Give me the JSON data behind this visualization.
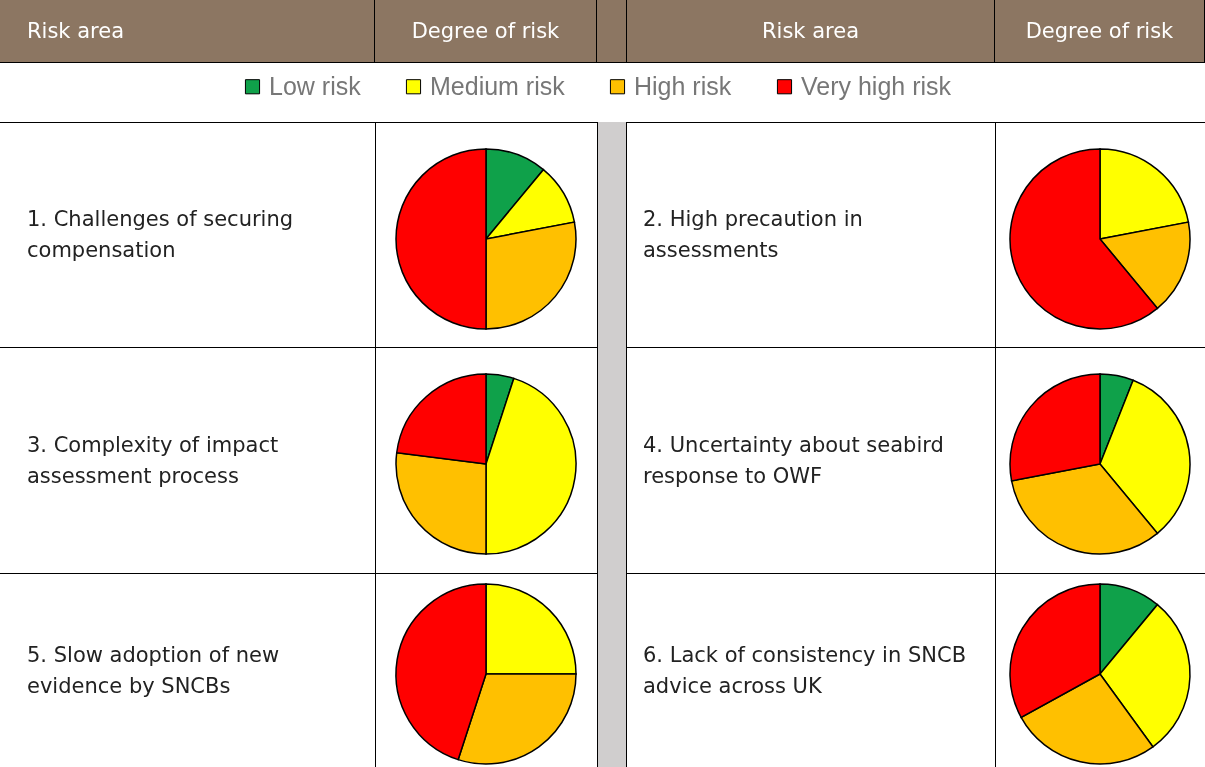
{
  "chart_data": [
    {
      "type": "pie",
      "title": "1. Challenges of securing compensation",
      "annotations": [
        "Risk area",
        "Degree of risk"
      ],
      "legend": "top",
      "categories": [
        "Low risk",
        "Medium risk",
        "High risk",
        "Very high risk"
      ],
      "values": [
        11,
        11,
        28,
        50
      ],
      "colors": [
        "#0fa14a",
        "#ffff00",
        "#ffc000",
        "#ff0000"
      ]
    },
    {
      "type": "pie",
      "title": "2. High precaution in assessments",
      "annotations": [
        "Risk area",
        "Degree of risk"
      ],
      "categories": [
        null,
        null,
        null
      ],
      "values": [
        22,
        17,
        61
      ],
      "colors": [
        "#ffff00",
        "#ffc000",
        "#ff0000"
      ]
    },
    {
      "type": "pie",
      "title": "3. Complexity of impact assessment process",
      "categories": [
        null,
        null,
        null,
        null
      ],
      "values": [
        5,
        45,
        27,
        23
      ],
      "colors": [
        "#0fa14a",
        "#ffff00",
        "#ffc000",
        "#ff0000"
      ]
    },
    {
      "type": "pie",
      "title": "4. Uncertainty about seabird response to OWF",
      "categories": [
        null,
        null,
        null,
        null
      ],
      "values": [
        6,
        33,
        33,
        28
      ],
      "colors": [
        "#0fa14a",
        "#ffff00",
        "#ffc000",
        "#ff0000"
      ]
    },
    {
      "type": "pie",
      "title": "5. Slow adoption of new evidence by SNCBs",
      "categories": [
        null,
        null,
        null
      ],
      "values": [
        25,
        30,
        45
      ],
      "colors": [
        "#ffff00",
        "#ffc000",
        "#ff0000"
      ]
    },
    {
      "type": "pie",
      "title": "6. Lack of consistency in SNCB advice across UK",
      "categories": [
        null,
        null,
        null,
        null
      ],
      "values": [
        11,
        29,
        27,
        33
      ],
      "colors": [
        "#0fa14a",
        "#ffff00",
        "#ffc000",
        "#ff0000"
      ]
    }
  ]
}
